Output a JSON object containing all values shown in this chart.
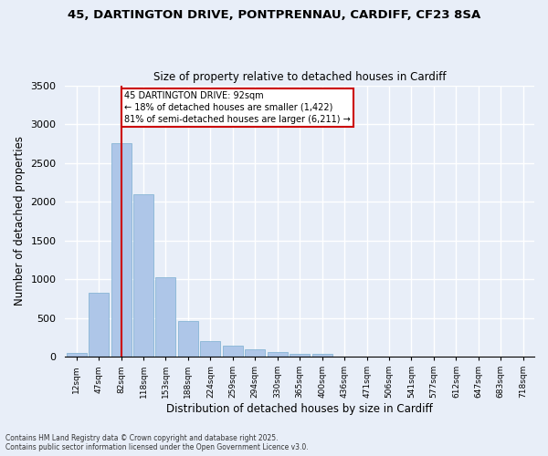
{
  "title1": "45, DARTINGTON DRIVE, PONTPRENNAU, CARDIFF, CF23 8SA",
  "title2": "Size of property relative to detached houses in Cardiff",
  "xlabel": "Distribution of detached houses by size in Cardiff",
  "ylabel": "Number of detached properties",
  "categories": [
    "12sqm",
    "47sqm",
    "82sqm",
    "118sqm",
    "153sqm",
    "188sqm",
    "224sqm",
    "259sqm",
    "294sqm",
    "330sqm",
    "365sqm",
    "400sqm",
    "436sqm",
    "471sqm",
    "506sqm",
    "541sqm",
    "577sqm",
    "612sqm",
    "647sqm",
    "683sqm",
    "718sqm"
  ],
  "values": [
    50,
    820,
    2750,
    2100,
    1020,
    460,
    200,
    140,
    90,
    60,
    40,
    30,
    0,
    0,
    0,
    0,
    0,
    0,
    0,
    0,
    0
  ],
  "bar_color": "#aec6e8",
  "bar_edge_color": "#7aaed0",
  "ylim": [
    0,
    3500
  ],
  "yticks": [
    0,
    500,
    1000,
    1500,
    2000,
    2500,
    3000,
    3500
  ],
  "property_bin_index": 2,
  "annotation_title": "45 DARTINGTON DRIVE: 92sqm",
  "annotation_line1": "← 18% of detached houses are smaller (1,422)",
  "annotation_line2": "81% of semi-detached houses are larger (6,211) →",
  "vline_x_index": 2,
  "footer1": "Contains HM Land Registry data © Crown copyright and database right 2025.",
  "footer2": "Contains public sector information licensed under the Open Government Licence v3.0.",
  "background_color": "#e8eef8",
  "grid_color": "#ffffff",
  "annotation_box_color": "#ffffff",
  "annotation_box_edge": "#cc0000",
  "vline_color": "#cc0000"
}
